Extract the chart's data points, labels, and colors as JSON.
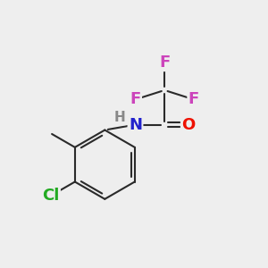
{
  "bg_color": "#eeeeee",
  "bond_color": "#2a2a2a",
  "atom_colors": {
    "F": "#cc44bb",
    "O": "#ee1100",
    "N": "#2222cc",
    "H": "#888888",
    "Cl": "#22aa22",
    "C": "#2a2a2a"
  },
  "line_width": 1.5,
  "fs_large": 13,
  "fs_medium": 11,
  "fs_small": 10
}
